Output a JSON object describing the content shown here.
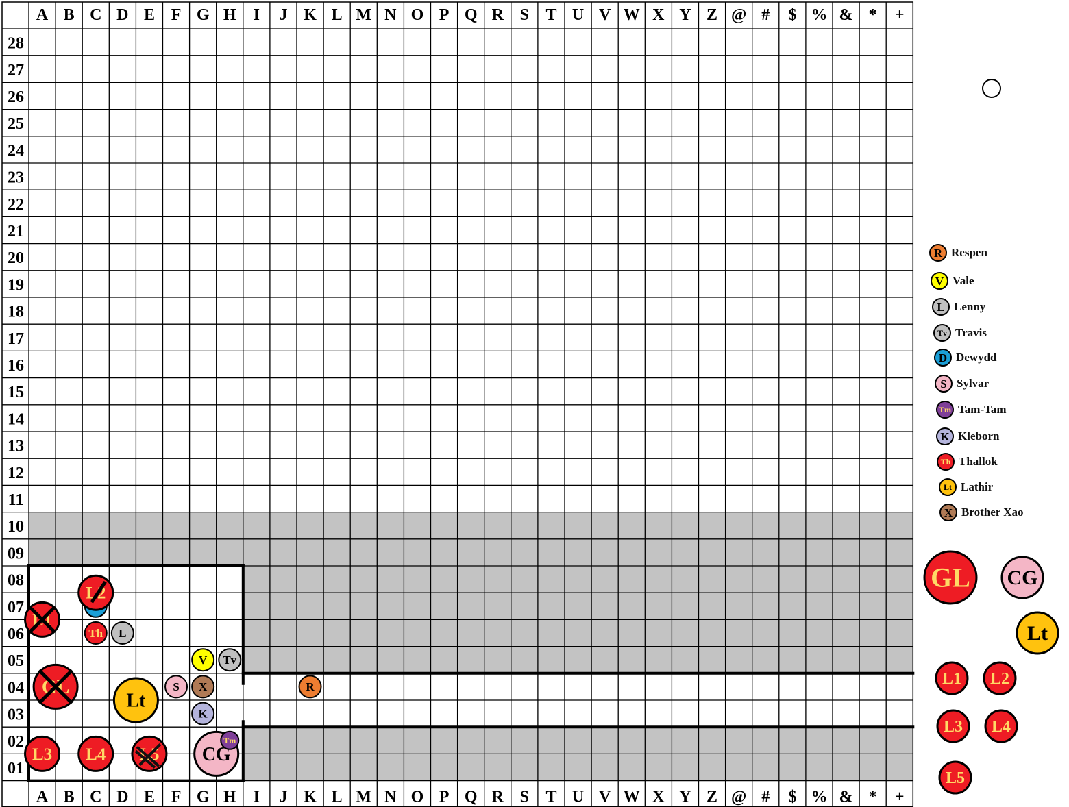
{
  "board": {
    "columns": [
      "A",
      "B",
      "C",
      "D",
      "E",
      "F",
      "G",
      "H",
      "I",
      "J",
      "K",
      "L",
      "M",
      "N",
      "O",
      "P",
      "Q",
      "R",
      "S",
      "T",
      "U",
      "V",
      "W",
      "X",
      "Y",
      "Z",
      "@",
      "#",
      "$",
      "%",
      "&",
      "*",
      "+"
    ],
    "rows": [
      "28",
      "27",
      "26",
      "25",
      "24",
      "23",
      "22",
      "21",
      "20",
      "19",
      "18",
      "17",
      "16",
      "15",
      "14",
      "13",
      "12",
      "11",
      "10",
      "09",
      "08",
      "07",
      "06",
      "05",
      "04",
      "03",
      "02",
      "01"
    ],
    "shaded_rows": [
      "10",
      "09",
      "08",
      "07",
      "06",
      "05",
      "02",
      "01"
    ],
    "shade_color": "#c3c3c3"
  },
  "map_tokens": [
    {
      "id": "respen",
      "text": "R",
      "col": "K",
      "row": "04",
      "size": "small",
      "color": "#ed7d31",
      "text_color": "#000000"
    },
    {
      "id": "vale",
      "text": "V",
      "col": "G",
      "row": "05",
      "size": "small",
      "color": "#ffff00",
      "text_color": "#000000"
    },
    {
      "id": "travis",
      "text": "Tv",
      "col": "H",
      "row": "05",
      "size": "small",
      "color": "#c0c0c0",
      "text_color": "#000000"
    },
    {
      "id": "lenny",
      "text": "L",
      "col": "D",
      "row": "06",
      "size": "small",
      "color": "#c0c0c0",
      "text_color": "#000000"
    },
    {
      "id": "thallok",
      "text": "Th",
      "col": "C",
      "row": "06",
      "size": "small",
      "color": "#ee1c24",
      "text_color": "#ffd966"
    },
    {
      "id": "dewydd",
      "text": "D",
      "col": "C",
      "row": "07",
      "size": "small",
      "color": "#1a9fd8",
      "text_color": "#000000"
    },
    {
      "id": "sylvar",
      "text": "S",
      "col": "F",
      "row": "04",
      "size": "small",
      "color": "#f4b6c6",
      "text_color": "#000000"
    },
    {
      "id": "brother-xao",
      "text": "X",
      "col": "G",
      "row": "04",
      "size": "small",
      "color": "#b07a55",
      "text_color": "#000000"
    },
    {
      "id": "kleborn",
      "text": "K",
      "col": "G",
      "row": "03",
      "size": "small",
      "color": "#b4b4dc",
      "text_color": "#000000"
    },
    {
      "id": "l1",
      "text": "L1",
      "col": "A",
      "row": "06.5",
      "size": "medium",
      "color": "#ee1c24",
      "text_color": "#ffd966",
      "crossed": true
    },
    {
      "id": "l2",
      "text": "L2",
      "col": "C",
      "row": "07.5",
      "size": "medium",
      "color": "#ee1c24",
      "text_color": "#ffd966",
      "slashed": true
    },
    {
      "id": "gl",
      "text": "GL",
      "col": "A",
      "row": "04",
      "size": "large",
      "color": "#ee1c24",
      "text_color": "#ffd966",
      "crossed": true
    },
    {
      "id": "lt",
      "text": "Lt",
      "col": "D",
      "row": "03.5",
      "size": "large",
      "color": "#ffc20e",
      "text_color": "#000000"
    },
    {
      "id": "l3",
      "text": "L3",
      "col": "A",
      "row": "01.5",
      "size": "medium",
      "color": "#ee1c24",
      "text_color": "#ffd966"
    },
    {
      "id": "l4",
      "text": "L4",
      "col": "C",
      "row": "01.5",
      "size": "medium",
      "color": "#ee1c24",
      "text_color": "#ffd966"
    },
    {
      "id": "l5",
      "text": "L5",
      "col": "E",
      "row": "01.5",
      "size": "medium",
      "color": "#ee1c24",
      "text_color": "#ffd966",
      "scribbled": true
    },
    {
      "id": "cg",
      "text": "CG",
      "col": "G",
      "row": "01.5",
      "size": "large",
      "color": "#f4b6c6",
      "text_color": "#000000"
    },
    {
      "id": "tam-tam",
      "text": "Tm",
      "col": "H",
      "row": "02",
      "size": "tiny",
      "color": "#7f3f98",
      "text_color": "#ffd966"
    }
  ],
  "legend": [
    {
      "text": "R",
      "label": "Respen",
      "color": "#ed7d31",
      "text_color": "#000000"
    },
    {
      "text": "V",
      "label": "Vale",
      "color": "#ffff00",
      "text_color": "#000000"
    },
    {
      "text": "L",
      "label": "Lenny",
      "color": "#c0c0c0",
      "text_color": "#000000"
    },
    {
      "text": "Tv",
      "label": "Travis",
      "color": "#c0c0c0",
      "text_color": "#000000"
    },
    {
      "text": "D",
      "label": "Dewydd",
      "color": "#1a9fd8",
      "text_color": "#000000"
    },
    {
      "text": "S",
      "label": "Sylvar",
      "color": "#f4b6c6",
      "text_color": "#000000"
    },
    {
      "text": "Tm",
      "label": "Tam-Tam",
      "color": "#7f3f98",
      "text_color": "#ffd966"
    },
    {
      "text": "K",
      "label": "Kleborn",
      "color": "#b4b4dc",
      "text_color": "#000000"
    },
    {
      "text": "Th",
      "label": "Thallok",
      "color": "#ee1c24",
      "text_color": "#ffd966"
    },
    {
      "text": "Lt",
      "label": "Lathir",
      "color": "#ffc20e",
      "text_color": "#000000"
    },
    {
      "text": "X",
      "label": "Brother Xao",
      "color": "#b07a55",
      "text_color": "#000000"
    }
  ],
  "reserve_tokens": [
    {
      "text": "GL",
      "color": "#ee1c24",
      "text_color": "#ffd966"
    },
    {
      "text": "CG",
      "color": "#f4b6c6",
      "text_color": "#000000"
    },
    {
      "text": "Lt",
      "color": "#ffc20e",
      "text_color": "#000000"
    },
    {
      "text": "L1",
      "color": "#ee1c24",
      "text_color": "#ffd966"
    },
    {
      "text": "L2",
      "color": "#ee1c24",
      "text_color": "#ffd966"
    },
    {
      "text": "L3",
      "color": "#ee1c24",
      "text_color": "#ffd966"
    },
    {
      "text": "L4",
      "color": "#ee1c24",
      "text_color": "#ffd966"
    },
    {
      "text": "L5",
      "color": "#ee1c24",
      "text_color": "#ffd966"
    }
  ]
}
